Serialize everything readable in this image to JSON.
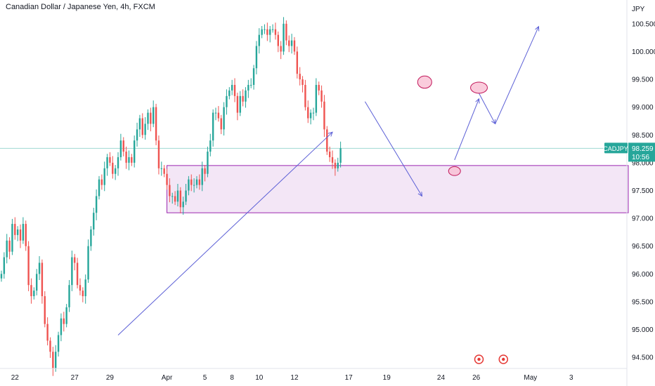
{
  "header": {
    "title": "Canadian Dollar / Japanese Yen, 4h, FXCM"
  },
  "price_axis": {
    "currency": "JPY"
  },
  "last_price": {
    "symbol": "CADJPY",
    "price": "98.259",
    "countdown": "10:56"
  },
  "colors": {
    "up": "#26a69a",
    "down": "#ef5350",
    "zone_fill": "#f3e6f6",
    "zone_stroke": "#9c27b0",
    "arrow": "#5b5fd6",
    "marker": "#e53935",
    "ellipse_fill": "#f8bbd0",
    "ellipse_stroke": "#c2185b"
  },
  "chart_data": {
    "type": "candlestick",
    "title": "Canadian Dollar / Japanese Yen, 4h, FXCM",
    "ylabel": "JPY",
    "ylim": [
      94.3,
      100.7
    ],
    "y_ticks": [
      "100.500",
      "100.000",
      "99.500",
      "99.000",
      "98.500",
      "98.000",
      "97.500",
      "97.000",
      "96.500",
      "96.000",
      "95.500",
      "95.000",
      "94.500"
    ],
    "y_tick_values": [
      100.5,
      100.0,
      99.5,
      99.0,
      98.5,
      98.0,
      97.5,
      97.0,
      96.5,
      96.0,
      95.5,
      95.0,
      94.5
    ],
    "x_ticks": [
      "22",
      "27",
      "29",
      "Apr",
      "5",
      "8",
      "10",
      "12",
      "17",
      "19",
      "24",
      "26",
      "May",
      "3"
    ],
    "x_tick_index": [
      5,
      27,
      40,
      61,
      75,
      85,
      95,
      108,
      128,
      142,
      162,
      175,
      195,
      210
    ],
    "x_range": [
      0,
      230
    ],
    "current_price": 98.259,
    "support_zone": {
      "low": 97.1,
      "high": 97.95,
      "x_start": 61,
      "x_end": 230
    },
    "price_line": 98.259,
    "closes": [
      96.0,
      96.3,
      96.6,
      96.4,
      96.9,
      96.7,
      96.8,
      96.6,
      96.9,
      96.5,
      95.8,
      95.6,
      95.7,
      96.0,
      96.2,
      95.6,
      95.1,
      94.8,
      94.6,
      94.3,
      94.6,
      94.9,
      95.2,
      95.1,
      95.4,
      95.8,
      96.3,
      96.2,
      95.8,
      95.7,
      95.6,
      95.9,
      96.5,
      96.8,
      97.1,
      97.4,
      97.7,
      97.6,
      97.9,
      98.1,
      98.0,
      97.8,
      97.9,
      98.1,
      98.4,
      98.2,
      98.0,
      98.1,
      98.0,
      98.4,
      98.6,
      98.8,
      98.5,
      98.7,
      98.9,
      98.7,
      99.0,
      98.4,
      97.9,
      97.9,
      97.8,
      97.6,
      97.4,
      97.4,
      97.3,
      97.5,
      97.2,
      97.3,
      97.5,
      97.7,
      97.6,
      97.6,
      97.7,
      97.6,
      97.9,
      97.8,
      98.2,
      98.4,
      98.9,
      98.9,
      98.8,
      98.6,
      99.0,
      99.2,
      99.3,
      99.4,
      99.2,
      98.9,
      99.2,
      99.1,
      99.3,
      99.4,
      99.4,
      99.7,
      100.1,
      100.3,
      100.4,
      100.4,
      100.3,
      100.4,
      100.4,
      100.3,
      100.1,
      100.0,
      100.5,
      100.2,
      100.1,
      100.2,
      100.0,
      99.6,
      99.5,
      99.4,
      99.0,
      98.8,
      98.9,
      98.9,
      99.4,
      99.3,
      99.1,
      98.6,
      98.2,
      98.1,
      98.0,
      97.9,
      98.0,
      98.26
    ],
    "annotations": {
      "arrows": [
        {
          "from": [
            43,
            94.9
          ],
          "to": [
            122,
            98.55
          ]
        },
        {
          "from": [
            134,
            99.1
          ],
          "to": [
            155,
            97.4
          ]
        },
        {
          "from": [
            167,
            98.05
          ],
          "to": [
            176,
            99.15
          ]
        },
        {
          "from": [
            176,
            99.25
          ],
          "to": [
            182,
            98.7
          ]
        },
        {
          "from": [
            182,
            98.7
          ],
          "to": [
            198,
            100.45
          ]
        }
      ],
      "ellipses": [
        {
          "x": 156,
          "y": 99.45,
          "rx": 2.6,
          "ry": 0.11
        },
        {
          "x": 167,
          "y": 97.85,
          "rx": 2.2,
          "ry": 0.08
        },
        {
          "x": 176,
          "y": 99.35,
          "rx": 3.1,
          "ry": 0.1
        }
      ],
      "markers_x": [
        176,
        185
      ]
    }
  }
}
